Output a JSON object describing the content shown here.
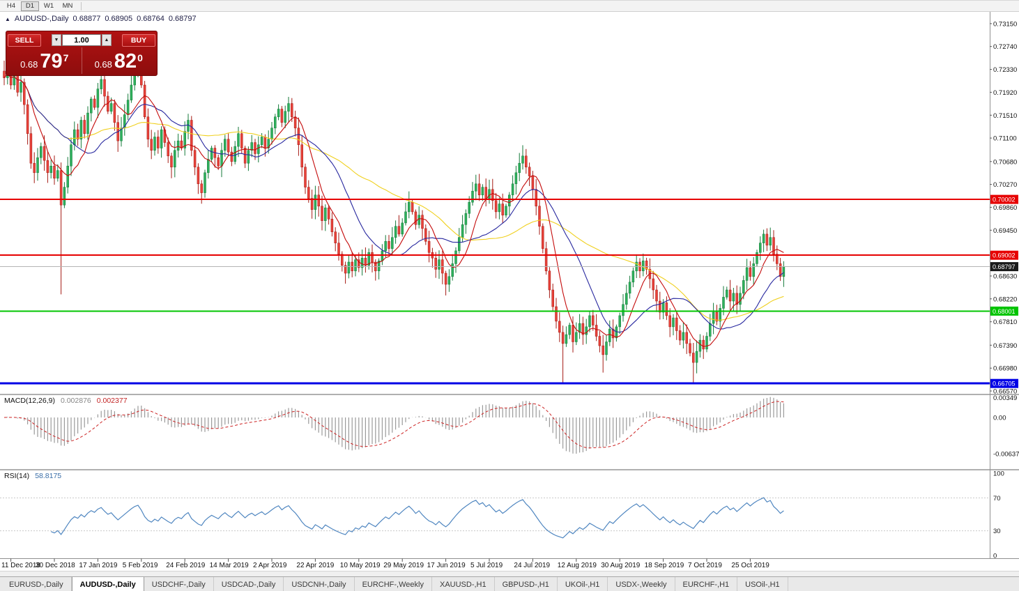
{
  "icons": {
    "chevron_down": "▼",
    "chevron_up": "▲",
    "marker_up": "▲"
  },
  "toolbar": {
    "timeframes": [
      {
        "label": "H4",
        "active": false
      },
      {
        "label": "D1",
        "active": true
      },
      {
        "label": "W1",
        "active": false
      },
      {
        "label": "MN",
        "active": false
      }
    ]
  },
  "trade_panel": {
    "sell_label": "SELL",
    "buy_label": "BUY",
    "lot_size": "1.00",
    "bid": {
      "prefix": "0.68",
      "big": "79",
      "sup": "7"
    },
    "ask": {
      "prefix": "0.68",
      "big": "82",
      "sup": "0"
    }
  },
  "tabs": [
    {
      "label": "EURUSD-,Daily",
      "active": false
    },
    {
      "label": "AUDUSD-,Daily",
      "active": true
    },
    {
      "label": "USDCHF-,Daily",
      "active": false
    },
    {
      "label": "USDCAD-,Daily",
      "active": false
    },
    {
      "label": "USDCNH-,Daily",
      "active": false
    },
    {
      "label": "EURCHF-,Weekly",
      "active": false
    },
    {
      "label": "XAUUSD-,H1",
      "active": false
    },
    {
      "label": "GBPUSD-,H1",
      "active": false
    },
    {
      "label": "UKOil-,H1",
      "active": false
    },
    {
      "label": "USDX-,Weekly",
      "active": false
    },
    {
      "label": "EURCHF-,H1",
      "active": false
    },
    {
      "label": "USOil-,H1",
      "active": false
    }
  ],
  "colors": {
    "bull": "#2eb05c",
    "bull_dark": "#157a3a",
    "bear": "#e8423a",
    "bear_dark": "#a61b14",
    "macd_hist": "#9a9a9a",
    "macd_signal": "#cc2222",
    "rsi": "#4f86c0",
    "axis_line": "#909090",
    "separator": "#b0b0b0",
    "grid_dotted": "#c8c8c8"
  },
  "chart_data": {
    "type": "candlestick",
    "title": "AUDUSD-,Daily",
    "symbol": "AUDUSD",
    "timeframe": "Daily",
    "ohlc_display": {
      "open": "0.68877",
      "high": "0.68905",
      "low": "0.68764",
      "close": "0.68797"
    },
    "bid": "0.68797",
    "ask": "0.68820",
    "price_axis": {
      "top": 0.73361,
      "bottom": 0.6652,
      "labels": [
        "0.73150",
        "0.72740",
        "0.72330",
        "0.71920",
        "0.71510",
        "0.71100",
        "0.70680",
        "0.70270",
        "0.69860",
        "0.69450",
        "0.69040",
        "0.68630",
        "0.68220",
        "0.67810",
        "0.67390",
        "0.66980",
        "0.66570"
      ]
    },
    "date_labels": [
      "11 Dec 2018",
      "30 Dec 2018",
      "17 Jan 2019",
      "5 Feb 2019",
      "24 Feb 2019",
      "14 Mar 2019",
      "2 Apr 2019",
      "22 Apr 2019",
      "10 May 2019",
      "29 May 2019",
      "17 Jun 2019",
      "5 Jul 2019",
      "24 Jul 2019",
      "12 Aug 2019",
      "30 Aug 2019",
      "18 Sep 2019",
      "7 Oct 2019",
      "25 Oct 2019"
    ],
    "hlines": [
      {
        "value": 0.70002,
        "label": "0.70002",
        "color": "#e60000",
        "width": 2,
        "badge": "#e60000"
      },
      {
        "value": 0.69002,
        "label": "0.69002",
        "color": "#e60000",
        "width": 2,
        "badge": "#e60000"
      },
      {
        "value": 0.68797,
        "label": "0.68797",
        "color": "#b4b4b4",
        "width": 1,
        "badge": "#1a1a1a"
      },
      {
        "value": 0.68001,
        "label": "0.68001",
        "color": "#00c400",
        "width": 2,
        "badge": "#00c400"
      },
      {
        "value": 0.66705,
        "label": "0.66705",
        "color": "#0000e6",
        "width": 3,
        "badge": "#0000e6"
      }
    ],
    "moving_averages": [
      {
        "period": 50,
        "color": "#f0d01e"
      },
      {
        "period": 20,
        "color": "#26269e"
      },
      {
        "period": 8,
        "color": "#c40a0a"
      }
    ],
    "closes": [
      0.7218,
      0.7232,
      0.7205,
      0.7224,
      0.7192,
      0.721,
      0.717,
      0.7118,
      0.7065,
      0.7048,
      0.7075,
      0.7095,
      0.707,
      0.7048,
      0.706,
      0.7038,
      0.7052,
      0.699,
      0.7022,
      0.706,
      0.7098,
      0.7125,
      0.7108,
      0.7142,
      0.7118,
      0.7155,
      0.718,
      0.7165,
      0.7198,
      0.7215,
      0.7185,
      0.7158,
      0.7172,
      0.7138,
      0.7105,
      0.7128,
      0.7152,
      0.7178,
      0.7205,
      0.7228,
      0.7242,
      0.7205,
      0.7148,
      0.7108,
      0.7088,
      0.7112,
      0.7092,
      0.7125,
      0.7102,
      0.7078,
      0.7058,
      0.7088,
      0.7105,
      0.7092,
      0.7122,
      0.7142,
      0.7088,
      0.7058,
      0.7028,
      0.7012,
      0.7048,
      0.7072,
      0.7092,
      0.7075,
      0.706,
      0.7088,
      0.7108,
      0.7085,
      0.7068,
      0.7095,
      0.7118,
      0.7092,
      0.7065,
      0.7088,
      0.7102,
      0.7082,
      0.7098,
      0.7112,
      0.7092,
      0.7108,
      0.7128,
      0.7148,
      0.7162,
      0.7138,
      0.7158,
      0.7172,
      0.7148,
      0.7128,
      0.7098,
      0.7058,
      0.7022,
      0.7002,
      0.6982,
      0.7008,
      0.6988,
      0.6962,
      0.6985,
      0.6965,
      0.6942,
      0.6922,
      0.6902,
      0.6882,
      0.6868,
      0.6888,
      0.6872,
      0.6892,
      0.6878,
      0.6895,
      0.6882,
      0.6905,
      0.6888,
      0.6872,
      0.689,
      0.6908,
      0.6925,
      0.6912,
      0.6932,
      0.6952,
      0.6938,
      0.6958,
      0.6978,
      0.6995,
      0.6978,
      0.6955,
      0.6972,
      0.6948,
      0.6925,
      0.6905,
      0.6895,
      0.6875,
      0.6892,
      0.6868,
      0.6848,
      0.6862,
      0.6885,
      0.6908,
      0.6932,
      0.6955,
      0.6975,
      0.6995,
      0.7015,
      0.7028,
      0.7008,
      0.7022,
      0.7002,
      0.7018,
      0.6998,
      0.6978,
      0.6992,
      0.6972,
      0.6988,
      0.7008,
      0.7028,
      0.7048,
      0.7065,
      0.7078,
      0.7058,
      0.7042,
      0.7018,
      0.6988,
      0.6952,
      0.6912,
      0.6872,
      0.6838,
      0.6808,
      0.6782,
      0.6762,
      0.6742,
      0.6758,
      0.6775,
      0.6745,
      0.6762,
      0.6778,
      0.6758,
      0.6772,
      0.6792,
      0.6775,
      0.6755,
      0.6738,
      0.6722,
      0.6745,
      0.6768,
      0.6752,
      0.6772,
      0.6792,
      0.6812,
      0.6832,
      0.6852,
      0.6872,
      0.6888,
      0.6872,
      0.689,
      0.6875,
      0.6858,
      0.6838,
      0.6818,
      0.6798,
      0.6815,
      0.6792,
      0.6772,
      0.6788,
      0.6765,
      0.6748,
      0.6762,
      0.6742,
      0.6725,
      0.6708,
      0.6728,
      0.6748,
      0.6732,
      0.6755,
      0.6778,
      0.6798,
      0.6782,
      0.6805,
      0.6825,
      0.6838,
      0.6818,
      0.6832,
      0.6812,
      0.6832,
      0.6855,
      0.6878,
      0.6862,
      0.6885,
      0.6905,
      0.6922,
      0.6938,
      0.6918,
      0.6932,
      0.6902,
      0.6885,
      0.6862,
      0.688
    ],
    "low_overrides": {
      "17": 0.683,
      "167": 0.6672,
      "179": 0.669,
      "206": 0.6672
    },
    "high_overrides": {
      "40": 0.7252,
      "227": 0.6946
    },
    "macd": {
      "label": "MACD(12,26,9)",
      "value_display": "0.002876",
      "signal_display": "0.002377",
      "axis_labels": [
        "0.00349",
        "0.00",
        "-0.00637"
      ]
    },
    "rsi": {
      "label": "RSI(14)",
      "value_display": "58.8175",
      "levels": [
        100,
        70,
        30,
        0
      ]
    }
  }
}
